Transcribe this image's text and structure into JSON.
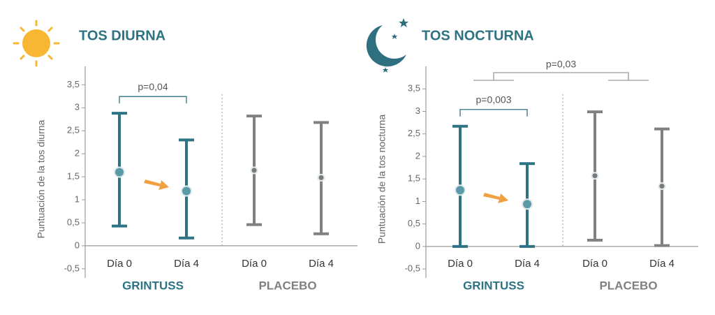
{
  "chart_data": [
    {
      "type": "errorbar",
      "title": "TOS DIURNA",
      "ylabel": "Puntuación de la tos diurna",
      "categories": [
        "Día 0",
        "Día 4"
      ],
      "series": [
        {
          "name": "GRINTUSS",
          "color": "#2e7383",
          "marker_color": "#5a9aa7",
          "values": [
            1.6,
            1.19
          ],
          "lows": [
            0.43,
            0.17
          ],
          "highs": [
            2.88,
            2.3
          ]
        },
        {
          "name": "PLACEBO",
          "color": "#808080",
          "marker_color": "#7a7a7a",
          "values": [
            1.64,
            1.48
          ],
          "lows": [
            0.46,
            0.26
          ],
          "highs": [
            2.82,
            2.68
          ]
        }
      ],
      "ylim": [
        -0.7,
        3.9
      ],
      "yticks": [
        {
          "value": -0.5,
          "label": "-0,5"
        },
        0,
        {
          "value": 0.5,
          "label": "0,5"
        },
        1,
        {
          "value": 1.5,
          "label": "1,5"
        },
        2,
        {
          "value": 2.5,
          "label": "2,5"
        },
        3,
        {
          "value": 3.5,
          "label": "3,5"
        }
      ],
      "annotations": [
        {
          "text": "p=0,04",
          "series": 0,
          "between": [
            0,
            1
          ]
        }
      ]
    },
    {
      "type": "errorbar",
      "title": "TOS NOCTURNA",
      "ylabel": "Puntuación de la tos nocturna",
      "categories": [
        "Día 0",
        "Día 4"
      ],
      "series": [
        {
          "name": "GRINTUSS",
          "color": "#2e7383",
          "marker_color": "#5a9aa7",
          "values": [
            1.25,
            0.94
          ],
          "lows": [
            0,
            0
          ],
          "highs": [
            2.67,
            1.84
          ]
        },
        {
          "name": "PLACEBO",
          "color": "#808080",
          "marker_color": "#7a7a7a",
          "values": [
            1.57,
            1.34
          ],
          "lows": [
            0.14,
            0.02
          ],
          "highs": [
            2.99,
            2.61
          ]
        }
      ],
      "ylim": [
        -0.7,
        4.0
      ],
      "yticks": [
        {
          "value": -0.5,
          "label": "-0,5"
        },
        0,
        {
          "value": 0.5,
          "label": "0,5"
        },
        1,
        {
          "value": 1.5,
          "label": "1,5"
        },
        2,
        {
          "value": 2.5,
          "label": "2,5"
        },
        3,
        {
          "value": 3.5,
          "label": "3,5"
        }
      ],
      "annotations": [
        {
          "text": "p=0,003",
          "series": 0,
          "between": [
            0,
            1
          ]
        },
        {
          "text": "p=0,03",
          "between_series": [
            0,
            1
          ]
        }
      ]
    }
  ]
}
